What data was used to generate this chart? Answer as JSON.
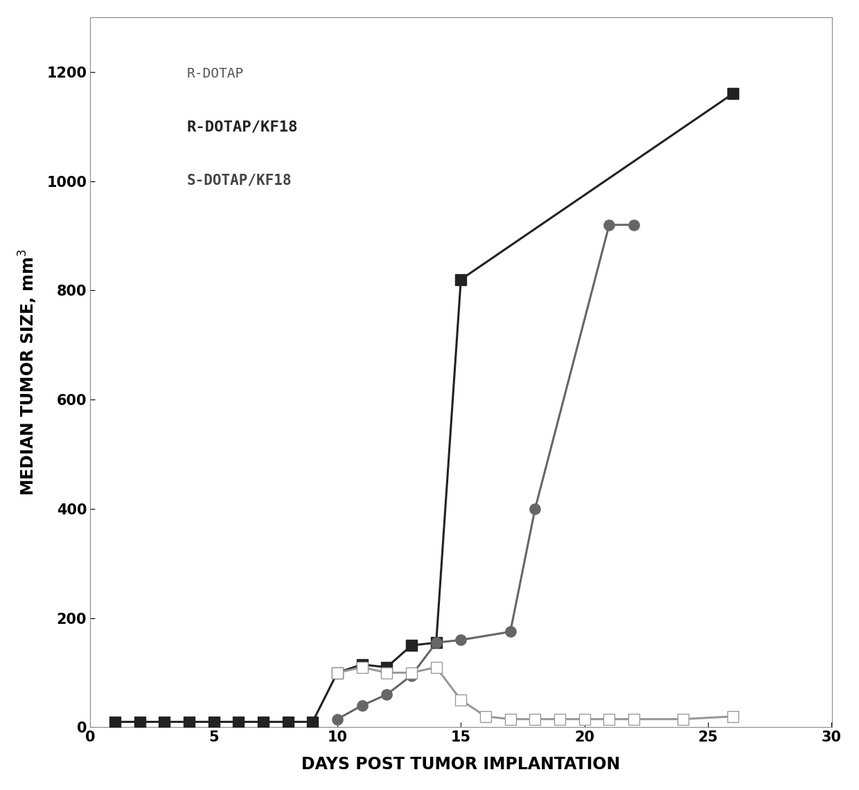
{
  "series": [
    {
      "label": "R-DOTAP",
      "x": [
        1,
        2,
        3,
        4,
        5,
        6,
        7,
        8,
        9,
        10,
        11,
        12,
        13,
        14,
        15,
        26
      ],
      "y": [
        10,
        10,
        10,
        10,
        10,
        10,
        10,
        10,
        10,
        100,
        115,
        110,
        150,
        155,
        820,
        1160
      ],
      "color": "#222222",
      "marker": "s",
      "markerface": "#222222",
      "markersize": 11,
      "linewidth": 2.2
    },
    {
      "label": "R-DOTAP/KF18",
      "x": [
        10,
        11,
        12,
        13,
        14,
        15,
        17,
        18,
        21,
        22
      ],
      "y": [
        15,
        40,
        60,
        95,
        155,
        160,
        175,
        400,
        920,
        920
      ],
      "color": "#666666",
      "marker": "o",
      "markerface": "#666666",
      "markersize": 11,
      "linewidth": 2.2
    },
    {
      "label": "S-DOTAP/KF18",
      "x": [
        10,
        11,
        12,
        13,
        14,
        15,
        16,
        17,
        18,
        19,
        20,
        21,
        22,
        24,
        26
      ],
      "y": [
        100,
        110,
        100,
        100,
        110,
        50,
        20,
        15,
        15,
        15,
        15,
        15,
        15,
        15,
        20
      ],
      "color": "#999999",
      "marker": "s",
      "markerface": "#ffffff",
      "markersize": 11,
      "linewidth": 2.2
    }
  ],
  "xlabel": "DAYS POST TUMOR IMPLANTATION",
  "ylabel_main": "MEDIAN TUMOR SIZE, mm",
  "ylabel_super": "3",
  "xlim": [
    0,
    30
  ],
  "ylim": [
    0,
    1300
  ],
  "yticks": [
    0,
    200,
    400,
    600,
    800,
    1000,
    1200
  ],
  "xticks": [
    0,
    5,
    10,
    15,
    20,
    25,
    30
  ],
  "background_color": "#ffffff",
  "legend_labels": [
    "R-DOTAP",
    "R-DOTAP/KF18",
    "S-DOTAP/KF18"
  ],
  "legend_fontsizes": [
    14,
    16,
    14
  ],
  "legend_fontweights": [
    "normal",
    "bold",
    "bold"
  ],
  "axis_fontsize": 17,
  "tick_fontsize": 15
}
